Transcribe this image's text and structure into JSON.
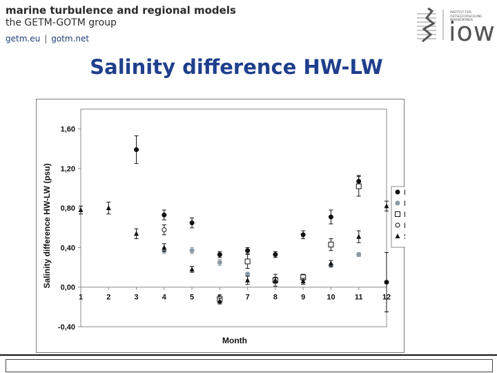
{
  "header": {
    "line1": "marine turbulence and regional models",
    "line2": "the GETM-GOTM group",
    "link1": "getm.eu",
    "separator": "|",
    "link2": "gotm.net",
    "logo_text": "INSTITUT FÜR OSTSEEFORSCHUNG WARNEMÜNDE",
    "logo_word": "iow"
  },
  "slide": {
    "title": "Salinity difference HW-LW"
  },
  "colors": {
    "title": "#1f3f8c",
    "links": "#1f3f78",
    "dark": "#111111",
    "grey": "#8a9aa6"
  },
  "chart_data": {
    "type": "scatter",
    "title": "",
    "xlabel": "Month",
    "ylabel": "Salinity difference HW-LW (psu)",
    "xlim": [
      1,
      12
    ],
    "ylim": [
      -0.4,
      1.8
    ],
    "x_ticks": [
      "1",
      "2",
      "3",
      "4",
      "5",
      "6",
      "7",
      "8",
      "9",
      "10",
      "11",
      "12"
    ],
    "y_ticks": [
      "1,60",
      "1,20",
      "0,80",
      "0,40",
      "0,00",
      "-0,40"
    ],
    "y_tick_values": [
      1.6,
      1.2,
      0.8,
      0.4,
      0.0,
      -0.4
    ],
    "grid": false,
    "legend_position": "right",
    "series": [
      {
        "name": "Langeoog",
        "marker": "filled-circle",
        "color": "#111111",
        "points": [
          {
            "x": 3,
            "y": 1.39,
            "err": 0.14
          },
          {
            "x": 4,
            "y": 0.73,
            "err": 0.05
          },
          {
            "x": 5,
            "y": 0.65,
            "err": 0.05
          },
          {
            "x": 6,
            "y": 0.33,
            "err": 0.03
          },
          {
            "x": 7,
            "y": 0.37,
            "err": 0.03
          },
          {
            "x": 8,
            "y": 0.33,
            "err": 0.03
          },
          {
            "x": 9,
            "y": 0.53,
            "err": 0.04
          },
          {
            "x": 10,
            "y": 0.71,
            "err": 0.07
          },
          {
            "x": 11,
            "y": 1.07,
            "err": 0.06
          },
          {
            "x": 12,
            "y": 0.05,
            "err": 0.3
          }
        ]
      },
      {
        "name": "Hörnum Deep",
        "marker": "filled-circle",
        "color": "#8a9aa6",
        "points": [
          {
            "x": 4,
            "y": 0.37,
            "err": 0.03
          },
          {
            "x": 5,
            "y": 0.37,
            "err": 0.03
          },
          {
            "x": 6,
            "y": 0.25,
            "err": 0.03
          },
          {
            "x": 7,
            "y": 0.13,
            "err": 0.02
          },
          {
            "x": 9,
            "y": 0.1,
            "err": 0.02
          },
          {
            "x": 10,
            "y": 0.22,
            "err": 0.02
          },
          {
            "x": 11,
            "y": 0.33,
            "err": 0.02
          }
        ]
      },
      {
        "name": "Rømø-Dyb",
        "marker": "open-square",
        "color": "#111111",
        "points": [
          {
            "x": 6,
            "y": -0.12,
            "err": 0.04
          },
          {
            "x": 7,
            "y": 0.26,
            "err": 0.07
          },
          {
            "x": 8,
            "y": 0.07,
            "err": 0.06
          },
          {
            "x": 9,
            "y": 0.1,
            "err": 0.03
          },
          {
            "x": 10,
            "y": 0.43,
            "err": 0.06
          },
          {
            "x": 11,
            "y": 1.02,
            "err": 0.1
          }
        ]
      },
      {
        "name": "Lister Ley",
        "marker": "open-circle",
        "color": "#111111",
        "points": [
          {
            "x": 4,
            "y": 0.58,
            "err": 0.05
          }
        ]
      },
      {
        "name": "Spiekeroog",
        "marker": "filled-triangle",
        "color": "#111111",
        "points": [
          {
            "x": 1,
            "y": 0.78,
            "err": 0.04
          },
          {
            "x": 2,
            "y": 0.8,
            "err": 0.06
          },
          {
            "x": 3,
            "y": 0.54,
            "err": 0.05
          },
          {
            "x": 4,
            "y": 0.4,
            "err": 0.04
          },
          {
            "x": 5,
            "y": 0.18,
            "err": 0.03
          },
          {
            "x": 6,
            "y": -0.14,
            "err": 0.03
          },
          {
            "x": 7,
            "y": 0.07,
            "err": 0.04
          },
          {
            "x": 8,
            "y": 0.07,
            "err": 0.03
          },
          {
            "x": 9,
            "y": 0.06,
            "err": 0.03
          },
          {
            "x": 10,
            "y": 0.24,
            "err": 0.03
          },
          {
            "x": 11,
            "y": 0.51,
            "err": 0.06
          },
          {
            "x": 12,
            "y": 0.82,
            "err": 0.05
          }
        ]
      }
    ]
  }
}
